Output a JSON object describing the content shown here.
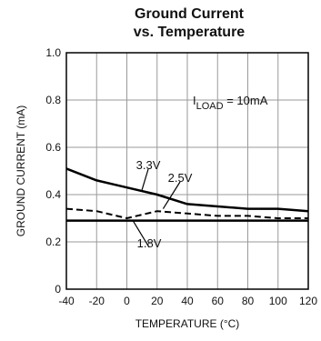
{
  "chart_data": {
    "type": "line",
    "title": [
      "Ground Current",
      "vs. Temperature"
    ],
    "xlabel": "TEMPERATURE (°C)",
    "ylabel": "GROUND CURRENT (mA)",
    "xlim": [
      -40,
      120
    ],
    "ylim": [
      0,
      1.0
    ],
    "xticks": [
      -40,
      -20,
      0,
      20,
      40,
      60,
      80,
      100,
      120
    ],
    "yticks": [
      0,
      0.2,
      0.4,
      0.6,
      0.8,
      1.0
    ],
    "xtick_labels": [
      "-40",
      "-20",
      "0",
      "20",
      "40",
      "60",
      "80",
      "100",
      "120"
    ],
    "ytick_labels": [
      "0",
      "0.2",
      "0.4",
      "0.6",
      "0.8",
      "1.0"
    ],
    "grid": true,
    "annotation": {
      "main": "I",
      "sub": "LOAD",
      "rest": " = 10mA"
    },
    "series": [
      {
        "name": "3.3V",
        "style": "solid",
        "x": [
          -40,
          -20,
          0,
          20,
          40,
          60,
          80,
          100,
          120
        ],
        "y": [
          0.51,
          0.46,
          0.43,
          0.4,
          0.36,
          0.35,
          0.34,
          0.34,
          0.33
        ]
      },
      {
        "name": "2.5V",
        "style": "dashed",
        "x": [
          -40,
          -20,
          0,
          20,
          40,
          60,
          80,
          100,
          120
        ],
        "y": [
          0.34,
          0.33,
          0.3,
          0.33,
          0.32,
          0.31,
          0.31,
          0.3,
          0.3
        ]
      },
      {
        "name": "1.8V",
        "style": "solid",
        "x": [
          -40,
          -20,
          0,
          20,
          40,
          60,
          80,
          100,
          120
        ],
        "y": [
          0.29,
          0.29,
          0.29,
          0.29,
          0.29,
          0.29,
          0.29,
          0.29,
          0.29
        ]
      }
    ]
  },
  "colors": {
    "grid": "#9a9a9a",
    "axes": "#000000",
    "text": "#111111"
  }
}
